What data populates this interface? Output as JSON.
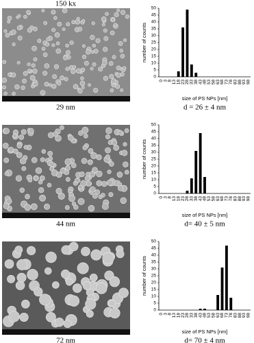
{
  "figure": {
    "magnification": "150 kx",
    "image_captions": [
      "29 nm",
      "44 nm",
      "72 nm"
    ]
  },
  "chart_data": [
    {
      "type": "bar",
      "ylabel": "number of counts",
      "xlabel": "size of PS NPs [nm]",
      "caption": "d = 26 ± 4 nm",
      "color": "#000000",
      "categories": [
        "0",
        "3",
        "8",
        "13",
        "18",
        "23",
        "28",
        "33",
        "38",
        "43",
        "48",
        "53",
        "58",
        "63",
        "68",
        "73",
        "78",
        "83",
        "88",
        "93",
        "98"
      ],
      "values": [
        0,
        0,
        0,
        0,
        4,
        36,
        49,
        9,
        3,
        0,
        0,
        0,
        0,
        0,
        0,
        0,
        0,
        0,
        0,
        0,
        0
      ],
      "ylim": [
        0,
        50
      ],
      "yticks": [
        0,
        5,
        10,
        15,
        20,
        25,
        30,
        35,
        40,
        45,
        50
      ]
    },
    {
      "type": "bar",
      "ylabel": "number of counts",
      "xlabel": "size of PS NPs [nm]",
      "caption": "d= 40 ± 5 nm",
      "color": "#000000",
      "categories": [
        "0",
        "3",
        "8",
        "13",
        "18",
        "23",
        "28",
        "33",
        "38",
        "43",
        "48",
        "53",
        "58",
        "63",
        "68",
        "73",
        "78",
        "83",
        "88",
        "93",
        "98"
      ],
      "values": [
        0,
        0,
        0,
        0,
        0,
        0,
        2,
        11,
        31,
        44,
        12,
        0,
        0,
        0,
        0,
        0,
        0,
        0,
        0,
        0,
        0
      ],
      "ylim": [
        0,
        50
      ],
      "yticks": [
        0,
        5,
        10,
        15,
        20,
        25,
        30,
        35,
        40,
        45,
        50
      ]
    },
    {
      "type": "bar",
      "ylabel": "number of counts",
      "xlabel": "size of PS NPs [nm]",
      "caption": "d= 70 ± 4 nm",
      "color": "#000000",
      "categories": [
        "0",
        "3",
        "8",
        "13",
        "18",
        "23",
        "28",
        "33",
        "38",
        "43",
        "48",
        "53",
        "58",
        "63",
        "68",
        "73",
        "78",
        "83",
        "88",
        "93",
        "98"
      ],
      "values": [
        0,
        0,
        0,
        0,
        0,
        0,
        0,
        0,
        0,
        1,
        1,
        0,
        0,
        11,
        31,
        47,
        9,
        0,
        0,
        0,
        0
      ],
      "ylim": [
        0,
        50
      ],
      "yticks": [
        0,
        5,
        10,
        15,
        20,
        25,
        30,
        35,
        40,
        45,
        50
      ]
    }
  ]
}
